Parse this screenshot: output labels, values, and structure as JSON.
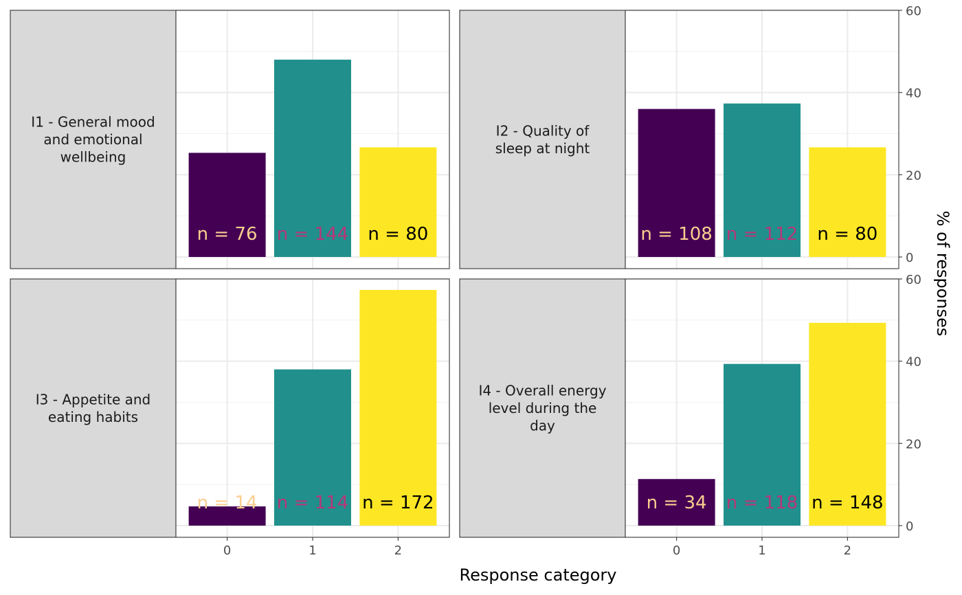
{
  "chart_data": {
    "type": "bar",
    "xlabel": "Response category",
    "ylabel": "% of responses",
    "categories": [
      "0",
      "1",
      "2"
    ],
    "ylim": [
      0,
      60
    ],
    "yticks": [
      0,
      20,
      40,
      60
    ],
    "grid": true,
    "legend": "none",
    "colors": {
      "bars": [
        "#440154",
        "#21908C",
        "#FDE725"
      ],
      "labels": [
        "#FCCE8F",
        "#B63679",
        "#000000"
      ],
      "strip": "#D9D9D9"
    },
    "panels": [
      {
        "title": "I1 - General mood and emotional wellbeing",
        "title_lines": [
          "I1 - General mood",
          "and emotional",
          "wellbeing"
        ],
        "values": [
          25.33,
          48.0,
          26.67
        ],
        "labels": [
          "n = 76",
          "n = 144",
          "n = 80"
        ]
      },
      {
        "title": "I2 - Quality of sleep at night",
        "title_lines": [
          "I2 - Quality of",
          "sleep at night"
        ],
        "values": [
          36.0,
          37.33,
          26.67
        ],
        "labels": [
          "n = 108",
          "n = 112",
          "n = 80"
        ]
      },
      {
        "title": "I3 - Appetite and eating habits",
        "title_lines": [
          "I3 - Appetite and",
          "eating habits"
        ],
        "values": [
          4.67,
          38.0,
          57.33
        ],
        "labels": [
          "n = 14",
          "n = 114",
          "n = 172"
        ]
      },
      {
        "title": "I4 - Overall energy level during the day",
        "title_lines": [
          "I4 - Overall energy",
          "level during the",
          "day"
        ],
        "values": [
          11.33,
          39.33,
          49.33
        ],
        "labels": [
          "n = 34",
          "n = 118",
          "n = 148"
        ]
      }
    ]
  }
}
